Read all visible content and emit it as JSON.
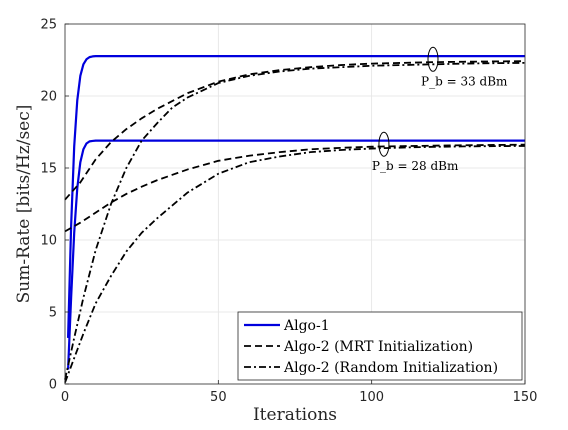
{
  "chart_data": {
    "type": "line",
    "title": "",
    "xlabel": "Iterations",
    "ylabel": "Sum-Rate [bits/Hz/sec]",
    "xlim": [
      0,
      150
    ],
    "ylim": [
      0,
      25
    ],
    "xticks": [
      0,
      50,
      100,
      150
    ],
    "yticks": [
      0,
      5,
      10,
      15,
      20,
      25
    ],
    "grid": true,
    "legend_position": "bottom-right",
    "series": [
      {
        "name": "Algo-1",
        "group": "33",
        "style": "solid",
        "color": "#0000dd",
        "x": [
          1,
          2,
          3,
          4,
          5,
          6,
          7,
          8,
          9,
          10,
          20,
          50,
          100,
          150
        ],
        "y": [
          3.2,
          11.0,
          16.5,
          19.7,
          21.4,
          22.2,
          22.55,
          22.7,
          22.75,
          22.77,
          22.77,
          22.77,
          22.77,
          22.77
        ]
      },
      {
        "name": "Algo-1",
        "group": "28",
        "style": "solid",
        "color": "#0000dd",
        "x": [
          1,
          2,
          3,
          4,
          5,
          6,
          7,
          8,
          9,
          10,
          20,
          50,
          100,
          150
        ],
        "y": [
          1.0,
          6.0,
          10.5,
          13.6,
          15.4,
          16.3,
          16.7,
          16.85,
          16.88,
          16.9,
          16.9,
          16.9,
          16.9,
          16.9
        ]
      },
      {
        "name": "Algo-2 (MRT Initialization)",
        "group": "33",
        "style": "dashed",
        "color": "#000000",
        "x": [
          0,
          5,
          10,
          15,
          20,
          25,
          30,
          40,
          50,
          60,
          70,
          80,
          90,
          100,
          110,
          120,
          130,
          140,
          150
        ],
        "y": [
          12.8,
          14.0,
          15.6,
          16.8,
          17.7,
          18.45,
          19.1,
          20.2,
          21.0,
          21.5,
          21.8,
          22.0,
          22.15,
          22.25,
          22.3,
          22.35,
          22.38,
          22.4,
          22.42
        ]
      },
      {
        "name": "Algo-2 (MRT Initialization)",
        "group": "28",
        "style": "dashed",
        "color": "#000000",
        "x": [
          0,
          5,
          10,
          15,
          20,
          25,
          30,
          40,
          50,
          60,
          70,
          80,
          90,
          100,
          110,
          120,
          130,
          140,
          150
        ],
        "y": [
          10.6,
          11.2,
          11.9,
          12.6,
          13.2,
          13.7,
          14.15,
          14.9,
          15.5,
          15.85,
          16.1,
          16.3,
          16.4,
          16.48,
          16.52,
          16.55,
          16.58,
          16.6,
          16.62
        ]
      },
      {
        "name": "Algo-2 (Random Initialization)",
        "group": "33",
        "style": "dashdot",
        "color": "#000000",
        "x": [
          0,
          3,
          6,
          10,
          15,
          20,
          25,
          30,
          35,
          40,
          50,
          60,
          70,
          80,
          90,
          100,
          110,
          120,
          130,
          140,
          150
        ],
        "y": [
          0.3,
          3.2,
          6.0,
          9.3,
          12.5,
          15.0,
          16.9,
          18.1,
          19.2,
          19.9,
          20.9,
          21.4,
          21.7,
          21.9,
          22.0,
          22.1,
          22.15,
          22.2,
          22.25,
          22.28,
          22.3
        ]
      },
      {
        "name": "Algo-2 (Random Initialization)",
        "group": "28",
        "style": "dashdot",
        "color": "#000000",
        "x": [
          0,
          3,
          6,
          10,
          15,
          20,
          25,
          30,
          35,
          40,
          50,
          60,
          70,
          80,
          90,
          100,
          110,
          120,
          130,
          140,
          150
        ],
        "y": [
          0.1,
          1.8,
          3.5,
          5.6,
          7.5,
          9.2,
          10.5,
          11.5,
          12.4,
          13.3,
          14.6,
          15.4,
          15.8,
          16.1,
          16.25,
          16.35,
          16.42,
          16.47,
          16.5,
          16.52,
          16.53
        ]
      }
    ],
    "legend": [
      {
        "label": "Algo-1",
        "style": "solid",
        "color": "#0000dd"
      },
      {
        "label": "Algo-2 (MRT Initialization)",
        "style": "dashed",
        "color": "#000000"
      },
      {
        "label": "Algo-2 (Random Initialization)",
        "style": "dashdot",
        "color": "#000000"
      }
    ],
    "annotations": [
      {
        "text": "P_b = 33 dBm",
        "x": 120,
        "y": 22.55
      },
      {
        "text": "P_b = 28 dBm",
        "x": 104,
        "y": 16.65
      }
    ]
  }
}
